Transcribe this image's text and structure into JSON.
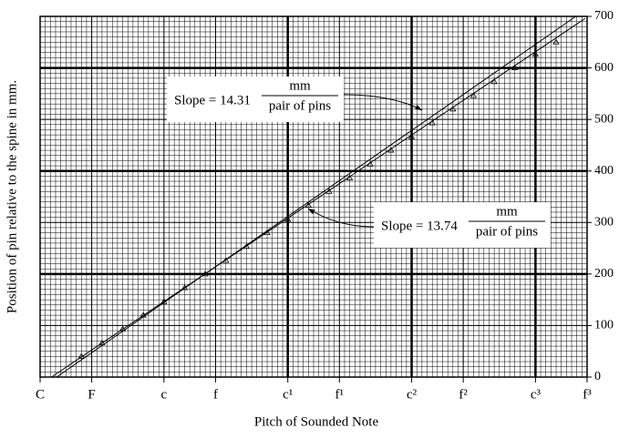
{
  "chart_data": {
    "type": "line",
    "xlabel": "Pitch of Sounded Note",
    "ylabel": "Position of pin relative to the spine in mm.",
    "xlim": [
      0,
      53
    ],
    "ylim": [
      0,
      700
    ],
    "xticks": [
      {
        "value": 0,
        "label": "C"
      },
      {
        "value": 5,
        "label": "F"
      },
      {
        "value": 12,
        "label": "c"
      },
      {
        "value": 17,
        "label": "f"
      },
      {
        "value": 24,
        "label": "c¹"
      },
      {
        "value": 29,
        "label": "f¹"
      },
      {
        "value": 36,
        "label": "c²"
      },
      {
        "value": 41,
        "label": "f²"
      },
      {
        "value": 48,
        "label": "c³"
      },
      {
        "value": 53,
        "label": "f³"
      }
    ],
    "yticks": [
      0,
      100,
      200,
      300,
      400,
      500,
      600,
      700
    ],
    "grid": true,
    "series": [
      {
        "color": "#000000",
        "x": [
          1.6,
          51.9
        ],
        "values": [
          0,
          700
        ]
      },
      {
        "color": "#000000",
        "x": [
          1.1,
          52.8
        ],
        "values": [
          0,
          696
        ]
      },
      {
        "color": "#000000",
        "marker": "triangle",
        "x": [
          4,
          6,
          8,
          10,
          12,
          14,
          16,
          18,
          20,
          22,
          24,
          26,
          28,
          30,
          32,
          34,
          36,
          38,
          40,
          42,
          44,
          46,
          48,
          50
        ],
        "values": [
          40,
          66,
          93,
          120,
          146,
          173,
          200,
          226,
          253,
          280,
          306,
          333,
          360,
          386,
          413,
          440,
          466,
          493,
          520,
          546,
          573,
          600,
          626,
          650
        ]
      }
    ],
    "annotations": [
      {
        "text": "Slope = 14.31",
        "numerator": "mm",
        "denominator": "pair of pins"
      },
      {
        "text": "Slope = 13.74",
        "numerator": "mm",
        "denominator": "pair of pins"
      }
    ]
  }
}
